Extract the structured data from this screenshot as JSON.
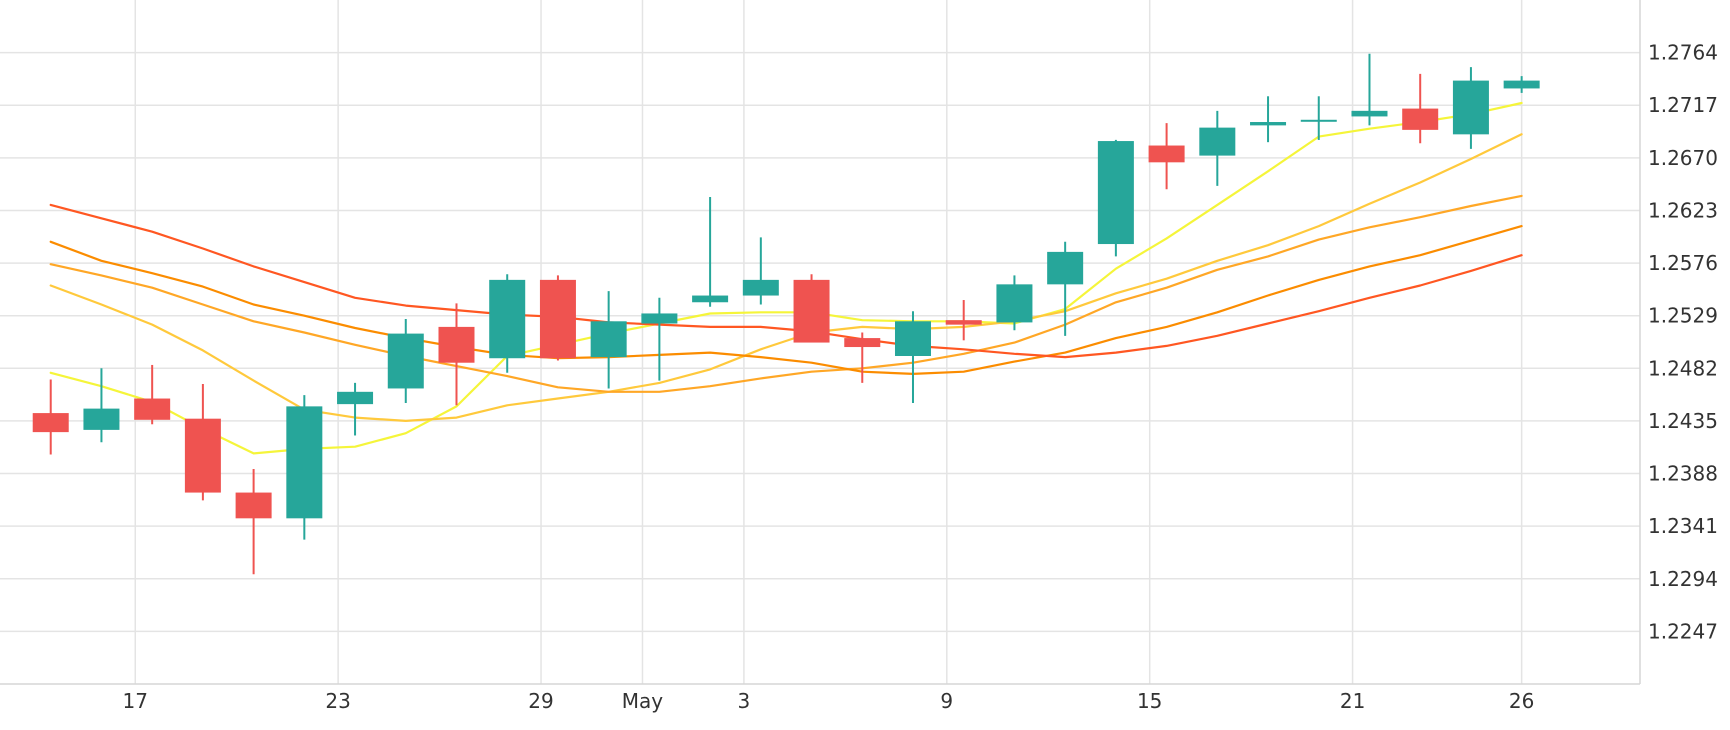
{
  "chart_data": {
    "type": "candlestick",
    "x_tick_labels": [
      {
        "day": 1,
        "label": "17"
      },
      {
        "day": 7,
        "label": "23"
      },
      {
        "day": 13,
        "label": "29"
      },
      {
        "day": 16,
        "label": "May"
      },
      {
        "day": 19,
        "label": "3"
      },
      {
        "day": 25,
        "label": "9"
      },
      {
        "day": 31,
        "label": "15"
      },
      {
        "day": 37,
        "label": "21"
      },
      {
        "day": 42,
        "label": "26"
      }
    ],
    "y_ticks": [
      1.2247,
      1.2294,
      1.2341,
      1.2388,
      1.2435,
      1.2482,
      1.2529,
      1.2576,
      1.2623,
      1.267,
      1.2717,
      1.2764
    ],
    "ylim": [
      1.22,
      1.2811
    ],
    "xlim": [
      -3,
      45.5
    ],
    "grid": true,
    "colors": {
      "up": "#26a69a",
      "down": "#ef5350"
    },
    "candles": [
      {
        "day": -1.5,
        "open": 1.2442,
        "high": 1.2472,
        "low": 1.2405,
        "close": 1.2425
      },
      {
        "day": 0,
        "open": 1.2427,
        "high": 1.2482,
        "low": 1.2416,
        "close": 1.2446
      },
      {
        "day": 1.5,
        "open": 1.2455,
        "high": 1.2485,
        "low": 1.2432,
        "close": 1.2436
      },
      {
        "day": 3,
        "open": 1.2437,
        "high": 1.2468,
        "low": 1.2364,
        "close": 1.2371
      },
      {
        "day": 4.5,
        "open": 1.2371,
        "high": 1.2392,
        "low": 1.2298,
        "close": 1.2348
      },
      {
        "day": 6,
        "open": 1.2348,
        "high": 1.2458,
        "low": 1.2329,
        "close": 1.2448
      },
      {
        "day": 7.5,
        "open": 1.245,
        "high": 1.2469,
        "low": 1.2422,
        "close": 1.2461
      },
      {
        "day": 9,
        "open": 1.2464,
        "high": 1.2526,
        "low": 1.2451,
        "close": 1.2513
      },
      {
        "day": 10.5,
        "open": 1.2519,
        "high": 1.254,
        "low": 1.2449,
        "close": 1.2487
      },
      {
        "day": 12,
        "open": 1.2491,
        "high": 1.2566,
        "low": 1.2478,
        "close": 1.2561
      },
      {
        "day": 13.5,
        "open": 1.2561,
        "high": 1.2565,
        "low": 1.2489,
        "close": 1.2491
      },
      {
        "day": 15,
        "open": 1.2492,
        "high": 1.2551,
        "low": 1.2464,
        "close": 1.2524
      },
      {
        "day": 16.5,
        "open": 1.2522,
        "high": 1.2545,
        "low": 1.2471,
        "close": 1.2531
      },
      {
        "day": 18,
        "open": 1.2541,
        "high": 1.2635,
        "low": 1.2537,
        "close": 1.2547
      },
      {
        "day": 19.5,
        "open": 1.2547,
        "high": 1.2599,
        "low": 1.2539,
        "close": 1.2561
      },
      {
        "day": 21,
        "open": 1.2561,
        "high": 1.2566,
        "low": 1.2505,
        "close": 1.2505
      },
      {
        "day": 22.5,
        "open": 1.2509,
        "high": 1.2514,
        "low": 1.2469,
        "close": 1.2501
      },
      {
        "day": 24,
        "open": 1.2493,
        "high": 1.2533,
        "low": 1.2451,
        "close": 1.2524
      },
      {
        "day": 25.5,
        "open": 1.2525,
        "high": 1.2543,
        "low": 1.2507,
        "close": 1.2521
      },
      {
        "day": 27,
        "open": 1.2523,
        "high": 1.2565,
        "low": 1.2516,
        "close": 1.2557
      },
      {
        "day": 28.5,
        "open": 1.2557,
        "high": 1.2595,
        "low": 1.2511,
        "close": 1.2586
      },
      {
        "day": 30,
        "open": 1.2593,
        "high": 1.2686,
        "low": 1.2582,
        "close": 1.2685
      },
      {
        "day": 31.5,
        "open": 1.2681,
        "high": 1.2701,
        "low": 1.2642,
        "close": 1.2666
      },
      {
        "day": 33,
        "open": 1.2672,
        "high": 1.2712,
        "low": 1.2645,
        "close": 1.2697
      },
      {
        "day": 34.5,
        "open": 1.2699,
        "high": 1.2725,
        "low": 1.2684,
        "close": 1.2702
      },
      {
        "day": 36,
        "open": 1.2704,
        "high": 1.2725,
        "low": 1.2686,
        "close": 1.2704
      },
      {
        "day": 37.5,
        "open": 1.2707,
        "high": 1.2763,
        "low": 1.2699,
        "close": 1.2712
      },
      {
        "day": 39,
        "open": 1.2714,
        "high": 1.2745,
        "low": 1.2683,
        "close": 1.2695
      },
      {
        "day": 40.5,
        "open": 1.2691,
        "high": 1.2751,
        "low": 1.2678,
        "close": 1.2739
      },
      {
        "day": 42,
        "open": 1.2732,
        "high": 1.2743,
        "low": 1.2728,
        "close": 1.2739
      }
    ],
    "series": [
      {
        "color": "#f5f53a",
        "points": [
          [
            -1.5,
            1.2478
          ],
          [
            0,
            1.2466
          ],
          [
            1.5,
            1.2452
          ],
          [
            3,
            1.2428
          ],
          [
            4.5,
            1.2406
          ],
          [
            6,
            1.241
          ],
          [
            7.5,
            1.2412
          ],
          [
            9,
            1.2424
          ],
          [
            10.5,
            1.2448
          ],
          [
            12,
            1.2493
          ],
          [
            13.5,
            1.2503
          ],
          [
            15,
            1.2513
          ],
          [
            16.5,
            1.2522
          ],
          [
            18,
            1.2531
          ],
          [
            19.5,
            1.2532
          ],
          [
            21,
            1.2532
          ],
          [
            22.5,
            1.2525
          ],
          [
            24,
            1.2524
          ],
          [
            25.5,
            1.2524
          ],
          [
            27,
            1.2522
          ],
          [
            28.5,
            1.2535
          ],
          [
            30,
            1.2571
          ],
          [
            31.5,
            1.2598
          ],
          [
            33,
            1.2628
          ],
          [
            34.5,
            1.2658
          ],
          [
            36,
            1.2689
          ],
          [
            37.5,
            1.2696
          ],
          [
            39,
            1.2702
          ],
          [
            40.5,
            1.2709
          ],
          [
            42,
            1.2719
          ]
        ]
      },
      {
        "color": "#ffc93c",
        "points": [
          [
            -1.5,
            1.2556
          ],
          [
            0,
            1.2539
          ],
          [
            1.5,
            1.2521
          ],
          [
            3,
            1.2498
          ],
          [
            4.5,
            1.2471
          ],
          [
            6,
            1.2445
          ],
          [
            7.5,
            1.2438
          ],
          [
            9,
            1.2435
          ],
          [
            10.5,
            1.2438
          ],
          [
            12,
            1.2449
          ],
          [
            13.5,
            1.2455
          ],
          [
            15,
            1.2461
          ],
          [
            16.5,
            1.2469
          ],
          [
            18,
            1.2481
          ],
          [
            19.5,
            1.2499
          ],
          [
            21,
            1.2514
          ],
          [
            22.5,
            1.2519
          ],
          [
            24,
            1.2517
          ],
          [
            25.5,
            1.2519
          ],
          [
            27,
            1.2524
          ],
          [
            28.5,
            1.2533
          ],
          [
            30,
            1.2549
          ],
          [
            31.5,
            1.2562
          ],
          [
            33,
            1.2578
          ],
          [
            34.5,
            1.2592
          ],
          [
            36,
            1.2609
          ],
          [
            37.5,
            1.2629
          ],
          [
            39,
            1.2648
          ],
          [
            40.5,
            1.2669
          ],
          [
            42,
            1.2691
          ]
        ]
      },
      {
        "color": "#ffa726",
        "points": [
          [
            -1.5,
            1.2575
          ],
          [
            0,
            1.2565
          ],
          [
            1.5,
            1.2554
          ],
          [
            3,
            1.2539
          ],
          [
            4.5,
            1.2524
          ],
          [
            6,
            1.2514
          ],
          [
            7.5,
            1.2503
          ],
          [
            9,
            1.2493
          ],
          [
            10.5,
            1.2484
          ],
          [
            12,
            1.2475
          ],
          [
            13.5,
            1.2465
          ],
          [
            15,
            1.2461
          ],
          [
            16.5,
            1.2461
          ],
          [
            18,
            1.2466
          ],
          [
            19.5,
            1.2473
          ],
          [
            21,
            1.2479
          ],
          [
            22.5,
            1.2482
          ],
          [
            24,
            1.2487
          ],
          [
            25.5,
            1.2495
          ],
          [
            27,
            1.2505
          ],
          [
            28.5,
            1.2521
          ],
          [
            30,
            1.2541
          ],
          [
            31.5,
            1.2554
          ],
          [
            33,
            1.257
          ],
          [
            34.5,
            1.2582
          ],
          [
            36,
            1.2597
          ],
          [
            37.5,
            1.2608
          ],
          [
            39,
            1.2617
          ],
          [
            40.5,
            1.2627
          ],
          [
            42,
            1.2636
          ]
        ]
      },
      {
        "color": "#fb8c00",
        "points": [
          [
            -1.5,
            1.2595
          ],
          [
            0,
            1.2578
          ],
          [
            1.5,
            1.2567
          ],
          [
            3,
            1.2555
          ],
          [
            4.5,
            1.2539
          ],
          [
            6,
            1.2529
          ],
          [
            7.5,
            1.2518
          ],
          [
            9,
            1.2509
          ],
          [
            10.5,
            1.2501
          ],
          [
            12,
            1.2494
          ],
          [
            13.5,
            1.2491
          ],
          [
            15,
            1.2492
          ],
          [
            16.5,
            1.2494
          ],
          [
            18,
            1.2496
          ],
          [
            19.5,
            1.2492
          ],
          [
            21,
            1.2487
          ],
          [
            22.5,
            1.2479
          ],
          [
            24,
            1.2477
          ],
          [
            25.5,
            1.2479
          ],
          [
            27,
            1.2488
          ],
          [
            28.5,
            1.2496
          ],
          [
            30,
            1.2509
          ],
          [
            31.5,
            1.2519
          ],
          [
            33,
            1.2532
          ],
          [
            34.5,
            1.2547
          ],
          [
            36,
            1.2561
          ],
          [
            37.5,
            1.2573
          ],
          [
            39,
            1.2583
          ],
          [
            40.5,
            1.2596
          ],
          [
            42,
            1.2609
          ]
        ]
      },
      {
        "color": "#ff5722",
        "points": [
          [
            -1.5,
            1.2628
          ],
          [
            0,
            1.2616
          ],
          [
            1.5,
            1.2604
          ],
          [
            3,
            1.2589
          ],
          [
            4.5,
            1.2573
          ],
          [
            6,
            1.2559
          ],
          [
            7.5,
            1.2545
          ],
          [
            9,
            1.2538
          ],
          [
            10.5,
            1.2534
          ],
          [
            12,
            1.253
          ],
          [
            13.5,
            1.2528
          ],
          [
            15,
            1.2523
          ],
          [
            16.5,
            1.2521
          ],
          [
            18,
            1.2519
          ],
          [
            19.5,
            1.2519
          ],
          [
            21,
            1.2515
          ],
          [
            22.5,
            1.2508
          ],
          [
            24,
            1.2502
          ],
          [
            25.5,
            1.2499
          ],
          [
            27,
            1.2495
          ],
          [
            28.5,
            1.2492
          ],
          [
            30,
            1.2496
          ],
          [
            31.5,
            1.2502
          ],
          [
            33,
            1.2511
          ],
          [
            34.5,
            1.2522
          ],
          [
            36,
            1.2533
          ],
          [
            37.5,
            1.2545
          ],
          [
            39,
            1.2556
          ],
          [
            40.5,
            1.2569
          ],
          [
            42,
            1.2583
          ]
        ]
      }
    ]
  }
}
